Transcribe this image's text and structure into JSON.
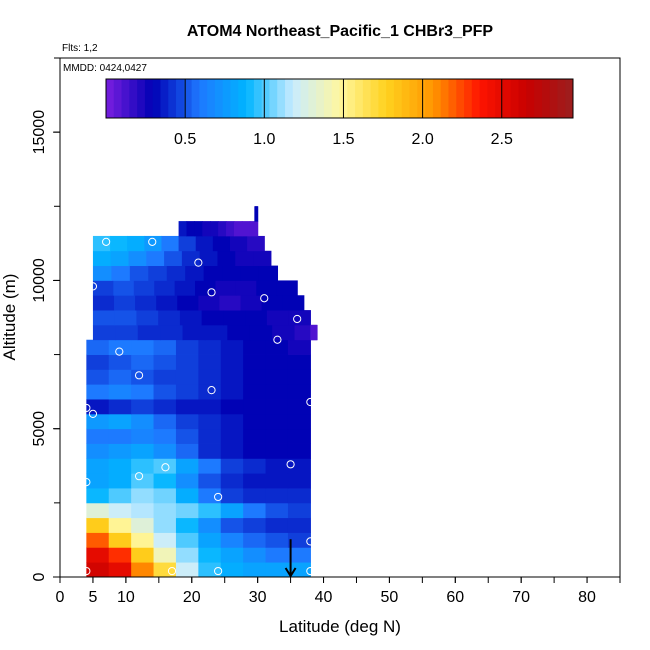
{
  "chart_data": {
    "type": "heatmap",
    "title": "ATOM4 Northeast_Pacific_1 CHBr3_PFP",
    "flights_label": "Flts: 1,2",
    "dates_label": "MMDD: 0424,0427",
    "xlabel": "Latitude (deg N)",
    "ylabel": "Altitude (m)",
    "xlim": [
      0,
      85
    ],
    "ylim": [
      0,
      17500
    ],
    "x_ticks": [
      0,
      5,
      10,
      20,
      30,
      40,
      50,
      60,
      70,
      80
    ],
    "y_ticks": [
      0,
      5000,
      10000,
      15000
    ],
    "colorbar": {
      "range": [
        0,
        2.95
      ],
      "ticks": [
        0.5,
        1.0,
        1.5,
        2.0,
        2.5
      ],
      "tick_labels": [
        "0.5",
        "1.0",
        "1.5",
        "2.0",
        "2.5"
      ],
      "colors": [
        "#7a1fe0",
        "#0000b4",
        "#1e78ff",
        "#00b4ff",
        "#c8ecff",
        "#fff7a0",
        "#ffd21e",
        "#ff9600",
        "#ff1400",
        "#c80000",
        "#9b1e1e"
      ]
    },
    "bands": [
      {
        "alt": [
          0,
          500
        ],
        "lat": [
          4,
          38
        ],
        "values": [
          2.6,
          2.5,
          2.1,
          1.7,
          1.2,
          0.95,
          0.85,
          0.8,
          0.8,
          0.8
        ]
      },
      {
        "alt": [
          500,
          1000
        ],
        "lat": [
          4,
          38
        ],
        "values": [
          2.5,
          2.3,
          1.8,
          1.4,
          1.1,
          0.9,
          0.8,
          0.7,
          0.6,
          0.6
        ]
      },
      {
        "alt": [
          1000,
          1500
        ],
        "lat": [
          4,
          38
        ],
        "values": [
          2.2,
          1.8,
          1.5,
          1.2,
          1.0,
          0.8,
          0.65,
          0.55,
          0.5,
          0.45
        ]
      },
      {
        "alt": [
          1500,
          2000
        ],
        "lat": [
          4,
          38
        ],
        "values": [
          1.8,
          1.5,
          1.3,
          1.1,
          0.9,
          0.7,
          0.5,
          0.45,
          0.4,
          0.4
        ]
      },
      {
        "alt": [
          2000,
          2500
        ],
        "lat": [
          4,
          38
        ],
        "values": [
          1.3,
          1.2,
          1.15,
          1.1,
          1.05,
          0.95,
          0.8,
          0.6,
          0.5,
          0.45
        ]
      },
      {
        "alt": [
          2500,
          3000
        ],
        "lat": [
          4,
          38
        ],
        "values": [
          0.9,
          1.0,
          1.1,
          1.05,
          0.85,
          0.6,
          0.45,
          0.4,
          0.4,
          0.4
        ]
      },
      {
        "alt": [
          3000,
          3500
        ],
        "lat": [
          4,
          38
        ],
        "values": [
          0.8,
          0.85,
          1.0,
          0.9,
          0.7,
          0.5,
          0.4,
          0.35,
          0.35,
          0.35
        ]
      },
      {
        "alt": [
          3500,
          4000
        ],
        "lat": [
          4,
          38
        ],
        "values": [
          0.8,
          0.85,
          0.95,
          1.0,
          0.8,
          0.6,
          0.45,
          0.4,
          0.35,
          0.35
        ]
      },
      {
        "alt": [
          4000,
          4500
        ],
        "lat": [
          4,
          38
        ],
        "values": [
          0.7,
          0.75,
          0.8,
          0.7,
          0.55,
          0.4,
          0.35,
          0.3,
          0.3,
          0.3
        ]
      },
      {
        "alt": [
          4500,
          5000
        ],
        "lat": [
          4,
          38
        ],
        "values": [
          0.6,
          0.6,
          0.65,
          0.6,
          0.5,
          0.4,
          0.35,
          0.3,
          0.3,
          0.3
        ]
      },
      {
        "alt": [
          5000,
          5500
        ],
        "lat": [
          4,
          38
        ],
        "values": [
          0.75,
          0.8,
          0.7,
          0.55,
          0.45,
          0.4,
          0.35,
          0.3,
          0.3,
          0.3
        ]
      },
      {
        "alt": [
          5500,
          6000
        ],
        "lat": [
          4,
          38
        ],
        "values": [
          0.35,
          0.4,
          0.45,
          0.4,
          0.35,
          0.35,
          0.3,
          0.3,
          0.3,
          0.3
        ]
      },
      {
        "alt": [
          6000,
          6500
        ],
        "lat": [
          4,
          38
        ],
        "values": [
          0.6,
          0.65,
          0.6,
          0.5,
          0.45,
          0.4,
          0.35,
          0.3,
          0.3,
          0.3
        ]
      },
      {
        "alt": [
          6500,
          7000
        ],
        "lat": [
          4,
          38
        ],
        "values": [
          0.5,
          0.55,
          0.5,
          0.45,
          0.45,
          0.4,
          0.35,
          0.3,
          0.3,
          0.3
        ]
      },
      {
        "alt": [
          7000,
          7500
        ],
        "lat": [
          4,
          38
        ],
        "values": [
          0.45,
          0.5,
          0.55,
          0.5,
          0.45,
          0.4,
          0.35,
          0.3,
          0.3,
          0.3
        ]
      },
      {
        "alt": [
          7500,
          8000
        ],
        "lat": [
          4,
          38
        ],
        "values": [
          0.55,
          0.6,
          0.6,
          0.55,
          0.45,
          0.4,
          0.35,
          0.3,
          0.3,
          0.25
        ]
      },
      {
        "alt": [
          8000,
          8500
        ],
        "lat": [
          5,
          39
        ],
        "values": [
          0.45,
          0.45,
          0.4,
          0.4,
          0.35,
          0.35,
          0.3,
          0.3,
          0.25,
          0.2
        ]
      },
      {
        "alt": [
          8500,
          9000
        ],
        "lat": [
          5,
          38
        ],
        "values": [
          0.5,
          0.5,
          0.45,
          0.4,
          0.35,
          0.3,
          0.3,
          0.3,
          0.25,
          0.25
        ]
      },
      {
        "alt": [
          9000,
          9500
        ],
        "lat": [
          5,
          37
        ],
        "values": [
          0.4,
          0.45,
          0.4,
          0.35,
          0.3,
          0.25,
          0.2,
          0.25,
          0.3,
          0.3
        ]
      },
      {
        "alt": [
          9500,
          10000
        ],
        "lat": [
          5,
          36
        ],
        "values": [
          0.45,
          0.5,
          0.45,
          0.4,
          0.35,
          0.3,
          0.25,
          0.25,
          0.3,
          0.3
        ]
      },
      {
        "alt": [
          10000,
          10500
        ],
        "lat": [
          5,
          33
        ],
        "values": [
          0.7,
          0.6,
          0.5,
          0.45,
          0.4,
          0.35,
          0.3,
          0.3,
          0.3,
          0.3
        ]
      },
      {
        "alt": [
          10500,
          11000
        ],
        "lat": [
          5,
          32
        ],
        "values": [
          0.85,
          0.8,
          0.7,
          0.6,
          0.5,
          0.4,
          0.35,
          0.3,
          0.25,
          0.25
        ]
      },
      {
        "alt": [
          11000,
          11500
        ],
        "lat": [
          5,
          31
        ],
        "values": [
          0.95,
          0.9,
          0.85,
          0.75,
          0.6,
          0.45,
          0.35,
          0.3,
          0.25,
          0.2
        ]
      },
      {
        "alt": [
          11500,
          12000
        ],
        "lat": [
          18,
          30
        ],
        "values": [
          0.35,
          0.3,
          0.3,
          0.25,
          0.25,
          0.2,
          0.15,
          0.1,
          0.1,
          0.1
        ]
      },
      {
        "alt": [
          12000,
          12500
        ],
        "lat": [
          29.5,
          30
        ],
        "values": [
          0.3,
          0.3,
          0.3,
          0.3,
          0.3,
          0.3,
          0.3,
          0.3,
          0.3,
          0.3
        ]
      },
      {
        "alt": [
          8000,
          8500
        ],
        "lat": [
          38,
          39
        ],
        "values": [
          0.1,
          0.1,
          0.1,
          0.1,
          0.1,
          0.1,
          0.1,
          0.1,
          0.1,
          0.1
        ]
      }
    ],
    "samples": [
      {
        "lat": 4,
        "alt": 200
      },
      {
        "lat": 4,
        "alt": 3200
      },
      {
        "lat": 4,
        "alt": 5700
      },
      {
        "lat": 5,
        "alt": 5500
      },
      {
        "lat": 5,
        "alt": 9800
      },
      {
        "lat": 7,
        "alt": 11300
      },
      {
        "lat": 9,
        "alt": 7600
      },
      {
        "lat": 12,
        "alt": 3400
      },
      {
        "lat": 12,
        "alt": 6800
      },
      {
        "lat": 14,
        "alt": 11300
      },
      {
        "lat": 16,
        "alt": 3700
      },
      {
        "lat": 17,
        "alt": 200
      },
      {
        "lat": 21,
        "alt": 10600
      },
      {
        "lat": 23,
        "alt": 9600
      },
      {
        "lat": 23,
        "alt": 6300
      },
      {
        "lat": 24,
        "alt": 2700
      },
      {
        "lat": 24,
        "alt": 200
      },
      {
        "lat": 31,
        "alt": 9400
      },
      {
        "lat": 33,
        "alt": 8000
      },
      {
        "lat": 35,
        "alt": 3800
      },
      {
        "lat": 36,
        "alt": 8700
      },
      {
        "lat": 38,
        "alt": 5900
      },
      {
        "lat": 38,
        "alt": 1200
      },
      {
        "lat": 38,
        "alt": 200
      }
    ],
    "marker_arrow": {
      "lat": 35,
      "alt_top": 600,
      "alt_bottom": 0
    },
    "grid": false,
    "legend": "colorbar top"
  }
}
